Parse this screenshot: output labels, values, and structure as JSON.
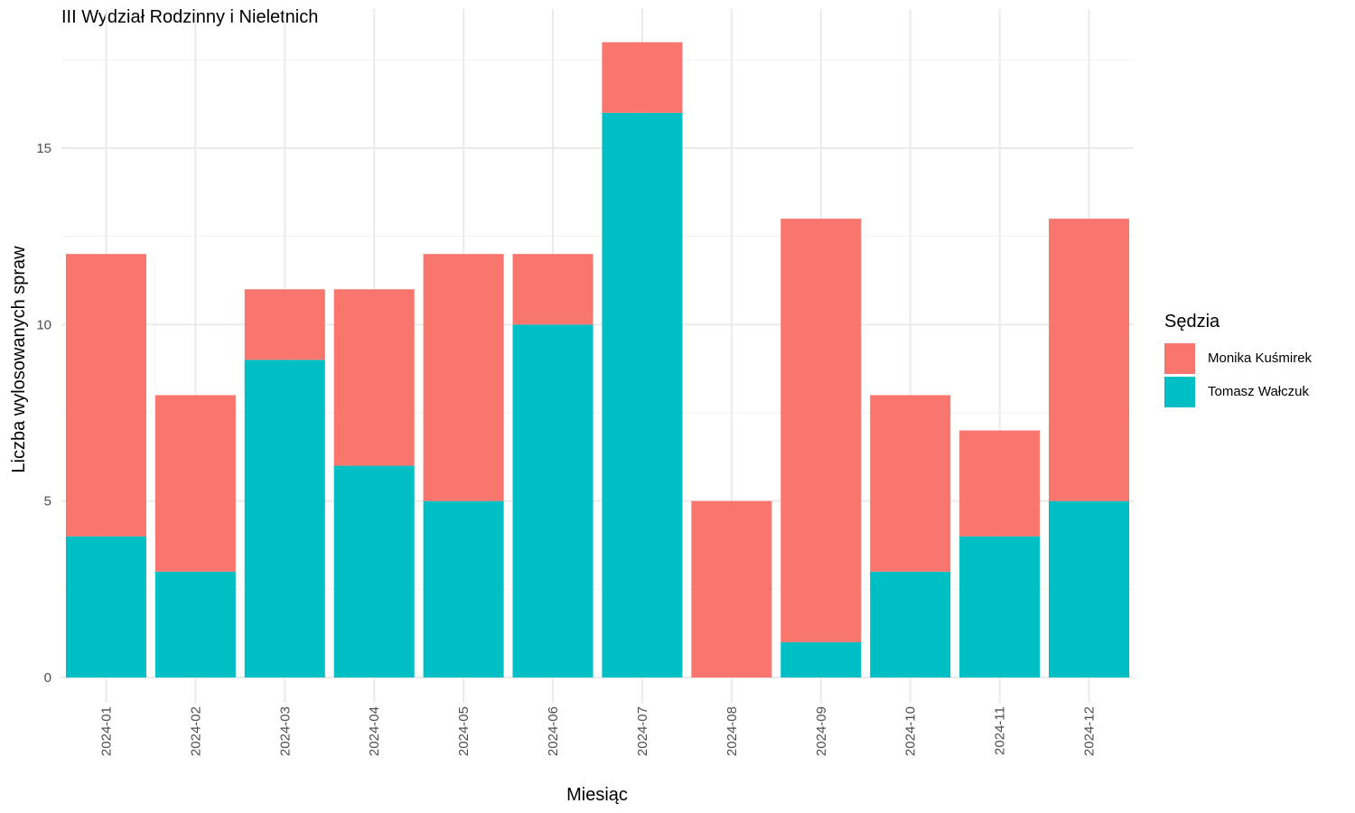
{
  "chart_data": {
    "type": "bar",
    "stacked": true,
    "title": "III Wydział Rodzinny i Nieletnich",
    "xlabel": "Miesiąc",
    "ylabel": "Liczba wylosowanych spraw",
    "categories": [
      "2024-01",
      "2024-02",
      "2024-03",
      "2024-04",
      "2024-05",
      "2024-06",
      "2024-07",
      "2024-08",
      "2024-09",
      "2024-10",
      "2024-11",
      "2024-12"
    ],
    "series": [
      {
        "name": "Tomasz Wałczuk",
        "color": "#00BFC4",
        "values": [
          4,
          3,
          9,
          6,
          5,
          10,
          16,
          0,
          1,
          3,
          4,
          5
        ]
      },
      {
        "name": "Monika Kuśmirek",
        "color": "#F8766D",
        "values": [
          8,
          5,
          2,
          5,
          7,
          2,
          2,
          5,
          12,
          5,
          3,
          8
        ]
      }
    ],
    "yticks": [
      0,
      5,
      10,
      15
    ],
    "ylim": [
      0,
      18.45
    ],
    "grid": true,
    "legend": {
      "title": "Sędzia",
      "position": "right",
      "order": [
        "Monika Kuśmirek",
        "Tomasz Wałczuk"
      ]
    }
  }
}
